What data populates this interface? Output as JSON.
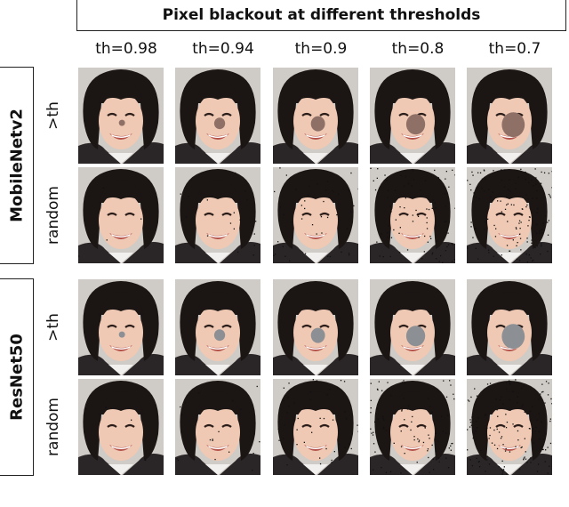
{
  "title": "Pixel blackout at different thresholds",
  "columns": [
    "th=0.98",
    "th=0.94",
    "th=0.9",
    "th=0.8",
    "th=0.7"
  ],
  "models": [
    {
      "name": "MobileNetv2",
      "rows": [
        "&gt;th",
        "random"
      ]
    },
    {
      "name": "ResNet50",
      "rows": [
        "&gt;th",
        "random"
      ]
    }
  ],
  "colors": {
    "mobilenet_blob": "#8f7066",
    "resnet_blob": "#8c8f94",
    "hair": "#1b1514",
    "skin": "#efc9b4",
    "background": "#cfcbc6"
  }
}
